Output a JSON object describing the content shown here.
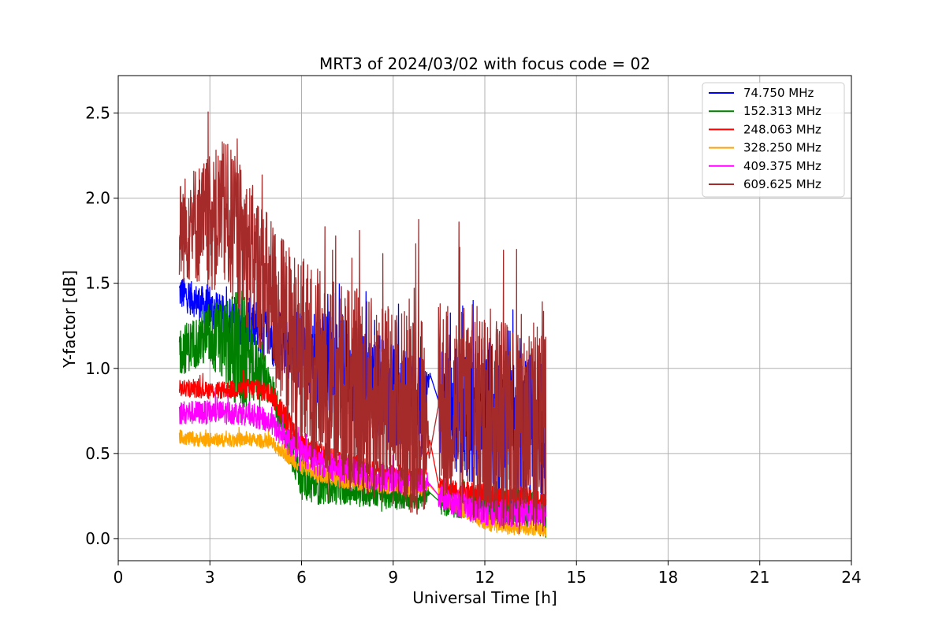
{
  "chart_data": {
    "type": "line",
    "title": "MRT3 of 2024/03/02 with focus code = 02",
    "xlabel": "Universal Time [h]",
    "ylabel": "Y-factor [dB]",
    "xlim": [
      0,
      24
    ],
    "ylim": [
      -0.13,
      2.72
    ],
    "x_ticks": [
      0,
      3,
      6,
      9,
      12,
      15,
      18,
      21,
      24
    ],
    "x_tick_labels": [
      "0",
      "3",
      "6",
      "9",
      "12",
      "15",
      "18",
      "21",
      "24"
    ],
    "y_ticks": [
      0.0,
      0.5,
      1.0,
      1.5,
      2.0,
      2.5
    ],
    "y_tick_labels": [
      "0.0",
      "0.5",
      "1.0",
      "1.5",
      "2.0",
      "2.5"
    ],
    "grid": true,
    "legend_position": "top-right",
    "series": [
      {
        "name": "  74.750 MHz",
        "color": "#0000ff",
        "x": [
          2.0,
          2.5,
          3.0,
          3.5,
          4.0,
          4.5,
          5.0,
          5.5,
          6.0,
          6.5,
          7.0,
          7.5,
          8.0,
          8.5,
          9.0,
          9.5,
          10.0,
          10.2,
          10.5,
          11.0,
          11.5,
          12.0,
          12.5,
          13.0,
          13.5,
          14.0
        ],
        "base": [
          1.45,
          1.4,
          1.35,
          1.3,
          1.28,
          1.25,
          1.2,
          1.15,
          1.1,
          1.05,
          1.05,
          1.0,
          0.95,
          0.9,
          0.85,
          0.8,
          0.75,
          0.97,
          0.8,
          0.75,
          0.7,
          0.75,
          0.65,
          0.6,
          0.6,
          0.55
        ],
        "noise": [
          0.1,
          0.1,
          0.12,
          0.12,
          0.15,
          0.15,
          0.18,
          0.2,
          0.25,
          0.3,
          0.3,
          0.3,
          0.3,
          0.3,
          0.3,
          0.3,
          0.3,
          0.0,
          0.35,
          0.35,
          0.4,
          0.45,
          0.45,
          0.45,
          0.45,
          0.5
        ]
      },
      {
        "name": " 152.313 MHz",
        "color": "#008000",
        "x": [
          2.0,
          2.5,
          3.0,
          3.5,
          4.0,
          4.5,
          5.0,
          5.5,
          6.0,
          6.5,
          7.0,
          7.5,
          8.0,
          8.5,
          9.0,
          9.5,
          10.0,
          10.2,
          10.5,
          11.0,
          11.5,
          12.0,
          12.5,
          13.0,
          13.5,
          14.0
        ],
        "base": [
          1.1,
          1.15,
          1.2,
          1.15,
          1.1,
          1.0,
          0.9,
          0.6,
          0.35,
          0.3,
          0.3,
          0.28,
          0.27,
          0.26,
          0.25,
          0.25,
          0.24,
          0.27,
          0.22,
          0.2,
          0.2,
          0.2,
          0.18,
          0.18,
          0.16,
          0.15
        ],
        "noise": [
          0.15,
          0.15,
          0.2,
          0.25,
          0.4,
          0.2,
          0.1,
          0.1,
          0.12,
          0.1,
          0.1,
          0.08,
          0.08,
          0.08,
          0.08,
          0.08,
          0.08,
          0.0,
          0.08,
          0.08,
          0.08,
          0.08,
          0.1,
          0.12,
          0.12,
          0.15
        ]
      },
      {
        "name": " 248.063 MHz",
        "color": "#ff0000",
        "x": [
          2.0,
          2.5,
          3.0,
          3.5,
          4.0,
          4.5,
          5.0,
          5.5,
          6.0,
          6.5,
          7.0,
          7.5,
          8.0,
          8.5,
          9.0,
          9.5,
          10.0,
          10.2,
          10.5,
          11.0,
          11.5,
          12.0,
          12.5,
          13.0,
          13.5,
          14.0
        ],
        "base": [
          0.88,
          0.88,
          0.87,
          0.87,
          0.88,
          0.88,
          0.85,
          0.7,
          0.55,
          0.5,
          0.45,
          0.42,
          0.4,
          0.38,
          0.36,
          0.35,
          0.34,
          0.58,
          0.3,
          0.28,
          0.27,
          0.26,
          0.25,
          0.25,
          0.24,
          0.23
        ],
        "noise": [
          0.05,
          0.05,
          0.05,
          0.05,
          0.06,
          0.06,
          0.06,
          0.08,
          0.08,
          0.08,
          0.08,
          0.08,
          0.08,
          0.08,
          0.08,
          0.08,
          0.08,
          0.0,
          0.06,
          0.06,
          0.06,
          0.06,
          0.06,
          0.06,
          0.06,
          0.06
        ]
      },
      {
        "name": " 328.250 MHz",
        "color": "#ffa500",
        "x": [
          2.0,
          2.5,
          3.0,
          3.5,
          4.0,
          4.5,
          5.0,
          5.5,
          6.0,
          6.5,
          7.0,
          7.5,
          8.0,
          8.5,
          9.0,
          9.5,
          10.0,
          10.2,
          10.5,
          11.0,
          11.5,
          12.0,
          12.5,
          13.0,
          13.5,
          14.0
        ],
        "base": [
          0.6,
          0.58,
          0.58,
          0.58,
          0.58,
          0.58,
          0.56,
          0.5,
          0.42,
          0.38,
          0.36,
          0.34,
          0.33,
          0.32,
          0.31,
          0.3,
          0.3,
          0.31,
          0.25,
          0.2,
          0.15,
          0.1,
          0.08,
          0.06,
          0.06,
          0.05
        ],
        "noise": [
          0.04,
          0.04,
          0.04,
          0.04,
          0.04,
          0.04,
          0.04,
          0.05,
          0.05,
          0.05,
          0.05,
          0.05,
          0.05,
          0.05,
          0.05,
          0.05,
          0.05,
          0.0,
          0.05,
          0.05,
          0.05,
          0.05,
          0.05,
          0.04,
          0.04,
          0.04
        ]
      },
      {
        "name": " 409.375 MHz",
        "color": "#ff00ff",
        "x": [
          2.0,
          2.5,
          3.0,
          3.5,
          4.0,
          4.5,
          5.0,
          5.5,
          6.0,
          6.5,
          7.0,
          7.5,
          8.0,
          8.5,
          9.0,
          9.5,
          10.0,
          10.2,
          10.5,
          11.0,
          11.5,
          12.0,
          12.5,
          13.0,
          13.5,
          14.0
        ],
        "base": [
          0.74,
          0.74,
          0.74,
          0.74,
          0.74,
          0.72,
          0.68,
          0.58,
          0.5,
          0.45,
          0.42,
          0.4,
          0.38,
          0.36,
          0.35,
          0.34,
          0.33,
          0.32,
          0.25,
          0.2,
          0.18,
          0.16,
          0.15,
          0.15,
          0.15,
          0.15
        ],
        "noise": [
          0.07,
          0.07,
          0.07,
          0.07,
          0.07,
          0.07,
          0.07,
          0.08,
          0.08,
          0.08,
          0.08,
          0.08,
          0.08,
          0.08,
          0.08,
          0.08,
          0.08,
          0.0,
          0.07,
          0.07,
          0.08,
          0.08,
          0.08,
          0.08,
          0.08,
          0.08
        ]
      },
      {
        "name": " 609.625 MHz",
        "color": "#a52a2a",
        "x": [
          2.0,
          2.5,
          3.0,
          3.5,
          4.0,
          4.5,
          5.0,
          5.5,
          6.0,
          6.5,
          7.0,
          7.5,
          8.0,
          8.5,
          9.0,
          9.5,
          10.0,
          10.2,
          10.5,
          11.0,
          11.5,
          12.0,
          12.5,
          13.0,
          13.5,
          14.0
        ],
        "base": [
          1.8,
          1.85,
          1.85,
          1.9,
          1.75,
          1.6,
          1.4,
          1.2,
          1.05,
          1.0,
          0.95,
          0.9,
          0.85,
          0.8,
          0.78,
          0.75,
          0.72,
          0.5,
          0.8,
          0.78,
          0.75,
          0.72,
          0.7,
          0.68,
          0.66,
          0.65
        ],
        "noise": [
          0.3,
          0.35,
          0.4,
          0.45,
          0.45,
          0.45,
          0.5,
          0.55,
          0.6,
          0.6,
          0.6,
          0.6,
          0.6,
          0.6,
          0.6,
          0.6,
          0.6,
          0.0,
          0.6,
          0.6,
          0.65,
          0.65,
          0.65,
          0.65,
          0.65,
          0.65
        ]
      }
    ]
  }
}
